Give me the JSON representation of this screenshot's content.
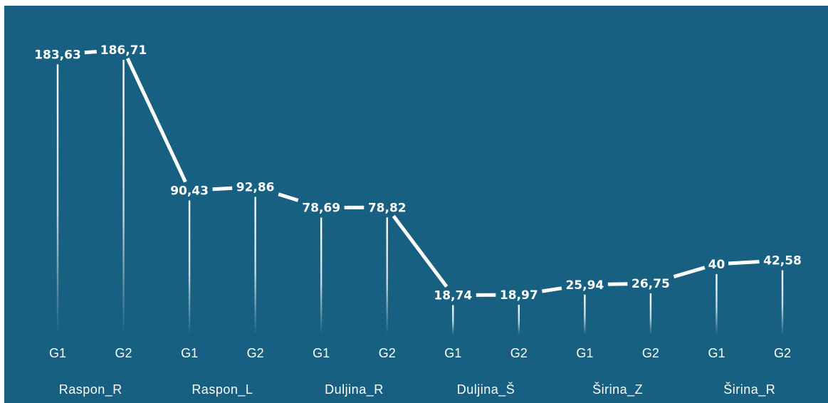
{
  "chart_data": {
    "type": "line",
    "categories": [
      "Raspon_R",
      "Raspon_L",
      "Duljina_R",
      "Duljina_Š",
      "Širina_Z",
      "Širina_R"
    ],
    "groups": [
      "G1",
      "G2"
    ],
    "x": [
      "G1",
      "G2",
      "G1",
      "G2",
      "G1",
      "G2",
      "G1",
      "G2",
      "G1",
      "G2",
      "G1",
      "G2"
    ],
    "values": [
      183.63,
      186.71,
      90.43,
      92.86,
      78.69,
      78.82,
      18.74,
      18.97,
      25.94,
      26.75,
      40,
      42.58
    ],
    "value_labels": [
      "183,63",
      "186,71",
      "90,43",
      "92,86",
      "78,69",
      "78,82",
      "18,74",
      "18,97",
      "25,94",
      "26,75",
      "40",
      "42,58"
    ],
    "ylim": [
      0,
      186.71
    ],
    "grid": false,
    "colors": {
      "background": "#176082",
      "line": "#ffffff",
      "text": "#ffffff"
    }
  }
}
